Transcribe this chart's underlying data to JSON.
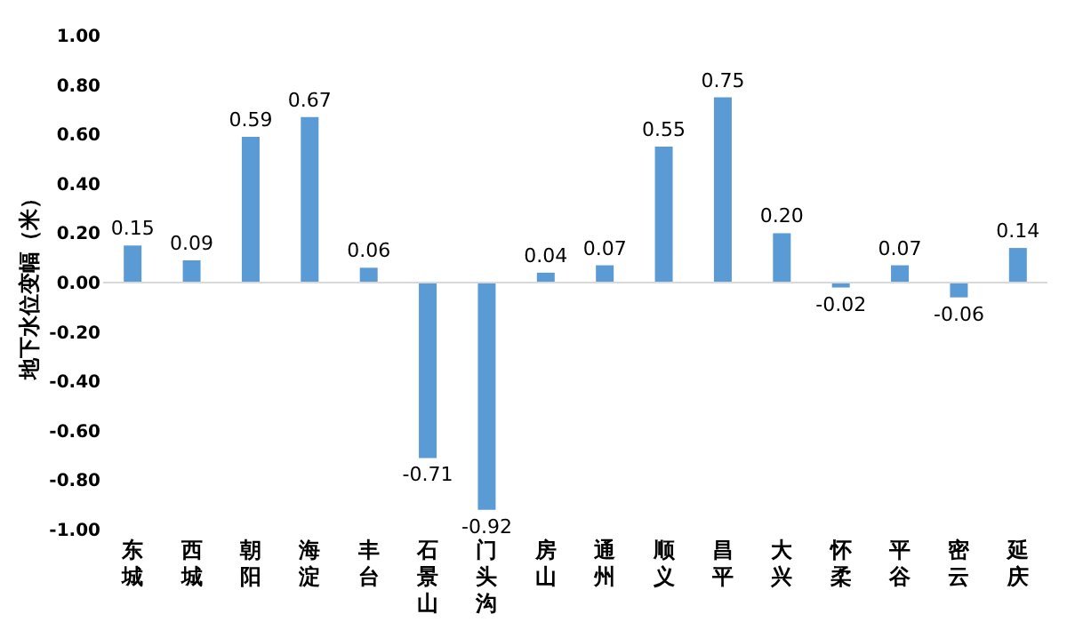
{
  "chart_data": {
    "type": "bar",
    "ylabel": "地下水位变幅（米）",
    "categories": [
      "东城",
      "西城",
      "朝阳",
      "海淀",
      "丰台",
      "石景山",
      "门头沟",
      "房山",
      "通州",
      "顺义",
      "昌平",
      "大兴",
      "怀柔",
      "平谷",
      "密云",
      "延庆"
    ],
    "values": [
      0.15,
      0.09,
      0.59,
      0.67,
      0.06,
      -0.71,
      -0.92,
      0.04,
      0.07,
      0.55,
      0.75,
      0.2,
      -0.02,
      0.07,
      -0.06,
      0.14
    ],
    "color": "#5b9bd5",
    "value_labels": [
      "0.15",
      "0.09",
      "0.59",
      "0.67",
      "0.06",
      "-0.71",
      "-0.92",
      "0.04",
      "0.07",
      "0.55",
      "0.75",
      "0.20",
      "-0.02",
      "0.07",
      "-0.06",
      "0.14"
    ],
    "ylim": [
      -1,
      1
    ],
    "yticks": [
      {
        "value": -1,
        "label": "-1.00"
      },
      {
        "value": -0.8,
        "label": "-0.80"
      },
      {
        "value": -0.6,
        "label": "-0.60"
      },
      {
        "value": -0.4,
        "label": "-0.40"
      },
      {
        "value": -0.2,
        "label": "-0.20"
      },
      {
        "value": 0,
        "label": "0.00"
      },
      {
        "value": 0.2,
        "label": "0.20"
      },
      {
        "value": 0.4,
        "label": "0.40"
      },
      {
        "value": 0.6,
        "label": "0.60"
      },
      {
        "value": 0.8,
        "label": "0.80"
      },
      {
        "value": 1,
        "label": "1.00"
      }
    ],
    "ref_lines": [
      {
        "axis": "y",
        "value": 0,
        "color": "#d9d9d9"
      }
    ],
    "grid": false
  }
}
